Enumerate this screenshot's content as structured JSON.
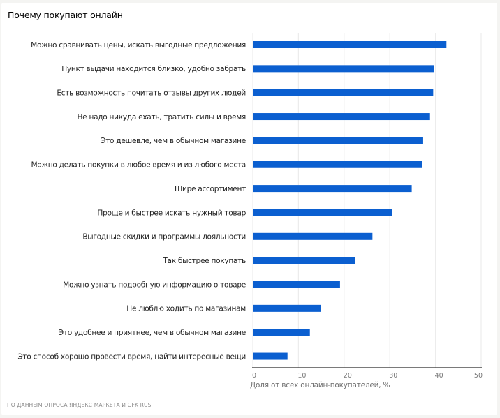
{
  "card": {
    "title": "Почему покупают онлайн",
    "source": "По данным опроса Яндекс Маркета и GfK Rus"
  },
  "colors": {
    "bar": "#0b5fd0",
    "grid": "#ececec",
    "axis": "#2b2b2b"
  },
  "chart_data": {
    "type": "bar",
    "orientation": "horizontal",
    "title": "Почему покупают онлайн",
    "xlabel": "Доля от всех онлайн-покупателей, %",
    "ylabel": "",
    "xlim": [
      0,
      50
    ],
    "xticks": [
      0,
      10,
      20,
      30,
      40,
      50
    ],
    "xtick_labels": [
      "0",
      "10",
      "20",
      "30",
      "40",
      "50"
    ],
    "grid": "vertical",
    "legend": "none",
    "categories": [
      "Можно сравнивать цены, искать выгодные предложения",
      "Пункт выдачи находится близко, удобно забрать",
      "Есть возможность почитать отзывы других людей",
      "Не надо никуда ехать, тратить силы и время",
      "Это дешевле, чем в обычном магазине",
      "Можно делать покупки в любое время и из любого места",
      "Шире ассортимент",
      "Проще и быстрее искать нужный товар",
      "Выгодные скидки и программы лояльности",
      "Так быстрее покупать",
      "Можно узнать подробную информацию о товаре",
      "Не люблю ходить по магазинам",
      "Это удобнее и приятнее, чем в обычном магазине",
      "Это способ хорошо провести время, найти интересные вещи"
    ],
    "values": [
      42.4,
      39.6,
      39.5,
      38.8,
      37.3,
      37.1,
      34.8,
      30.5,
      26.2,
      22.4,
      19.1,
      14.9,
      12.5,
      7.6
    ],
    "source": "По данным опроса Яндекс Маркета и GfK Rus"
  }
}
